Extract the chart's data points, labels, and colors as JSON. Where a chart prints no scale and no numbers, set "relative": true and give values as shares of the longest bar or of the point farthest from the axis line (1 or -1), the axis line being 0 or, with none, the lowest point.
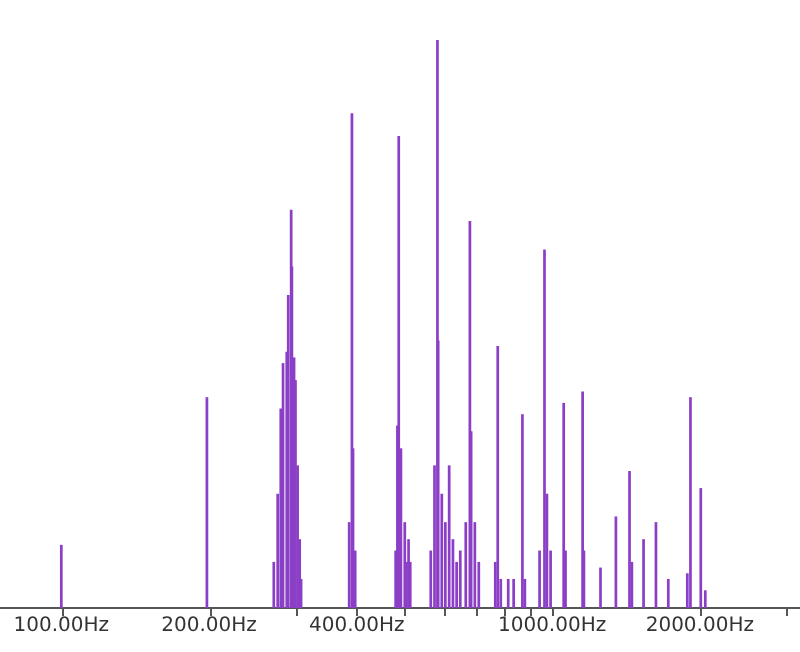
{
  "chart_data": {
    "type": "bar",
    "relative": true,
    "color": "#8b3fc6",
    "grid": false,
    "log": "x",
    "x": [
      100,
      198,
      271,
      276,
      280,
      283,
      288,
      290,
      294,
      295,
      298,
      300,
      303,
      306,
      308,
      386,
      391,
      393,
      397,
      480,
      484,
      487,
      492,
      501,
      505,
      510,
      514,
      566,
      576,
      584,
      586,
      596,
      606,
      617,
      628,
      639,
      650,
      667,
      680,
      684,
      696,
      709,
      766,
      775,
      786,
      814,
      835,
      870,
      880,
      943,
      965,
      976,
      993,
      1056,
      1065,
      1154,
      1161,
      1255,
      1349,
      1438,
      1454,
      1536,
      1628,
      1725,
      1886,
      1914,
      2009,
      2052
    ],
    "values": [
      0.11,
      0.37,
      0.08,
      0.2,
      0.35,
      0.43,
      0.45,
      0.55,
      0.7,
      0.6,
      0.44,
      0.4,
      0.25,
      0.12,
      0.05,
      0.15,
      0.87,
      0.28,
      0.1,
      0.1,
      0.32,
      0.83,
      0.28,
      0.15,
      0.08,
      0.12,
      0.08,
      0.1,
      0.25,
      1,
      0.47,
      0.2,
      0.15,
      0.25,
      0.12,
      0.08,
      0.1,
      0.15,
      0.68,
      0.31,
      0.15,
      0.08,
      0.08,
      0.46,
      0.05,
      0.05,
      0.05,
      0.34,
      0.05,
      0.1,
      0.63,
      0.2,
      0.1,
      0.36,
      0.1,
      0.38,
      0.1,
      0.07,
      0.16,
      0.24,
      0.08,
      0.12,
      0.15,
      0.05,
      0.06,
      0.37,
      0.21,
      0.03
    ],
    "xlim": [
      75,
      3200
    ],
    "xticks": [
      {
        "value": 100,
        "label": "100.00Hz"
      },
      {
        "value": 200,
        "label": "200.00Hz"
      },
      {
        "value": 300,
        "label": null
      },
      {
        "value": 400,
        "label": "400.00Hz"
      },
      {
        "value": 500,
        "label": null
      },
      {
        "value": 600,
        "label": null
      },
      {
        "value": 700,
        "label": null
      },
      {
        "value": 800,
        "label": null
      },
      {
        "value": 900,
        "label": null
      },
      {
        "value": 1000,
        "label": "1000.00Hz"
      },
      {
        "value": 2000,
        "label": "2000.00Hz"
      },
      {
        "value": 3000,
        "label": null
      }
    ]
  }
}
